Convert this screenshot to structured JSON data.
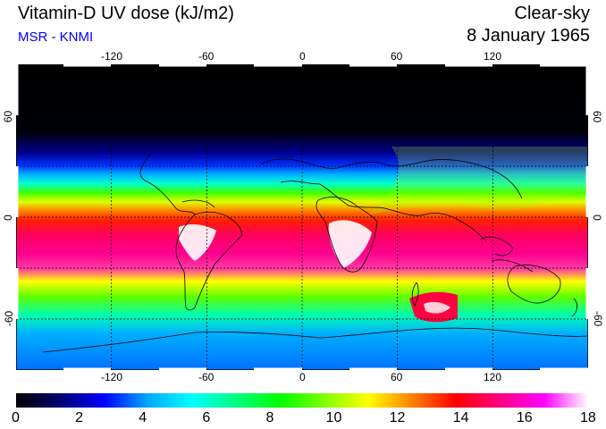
{
  "header": {
    "title": "Vitamin-D UV dose (kJ/m2)",
    "source": "MSR - KNMI",
    "condition": "Clear-sky",
    "date": "8 January 1965"
  },
  "colors": {
    "source_text": "#0000ff",
    "night": "#000000",
    "high": "#ff0080",
    "peak": "#ffffff"
  },
  "map": {
    "projection": "equirectangular",
    "lon_range": [
      -180,
      180
    ],
    "lat_range": [
      -90,
      90
    ],
    "gridlines": "dashed-black",
    "lon_labels_top": [
      "-120",
      "-60",
      "0",
      "60",
      "120"
    ],
    "lon_labels_bottom": [
      "-120",
      "-60",
      "0",
      "60",
      "120"
    ],
    "lat_labels_left": [
      "60",
      "0",
      "-60"
    ],
    "lat_labels_right": [
      "60",
      "0",
      "-60"
    ]
  },
  "colorbar": {
    "min": 0,
    "max": 18,
    "labels": [
      "0",
      "2",
      "4",
      "6",
      "8",
      "10",
      "12",
      "14",
      "16",
      "18"
    ],
    "colormap": [
      "#000000",
      "#000070",
      "#0000ff",
      "#00aaff",
      "#00ffff",
      "#00ff80",
      "#00ff00",
      "#80ff00",
      "#ffff00",
      "#ff8000",
      "#ff0000",
      "#ff0080",
      "#ff00ff",
      "#ffffff"
    ]
  }
}
